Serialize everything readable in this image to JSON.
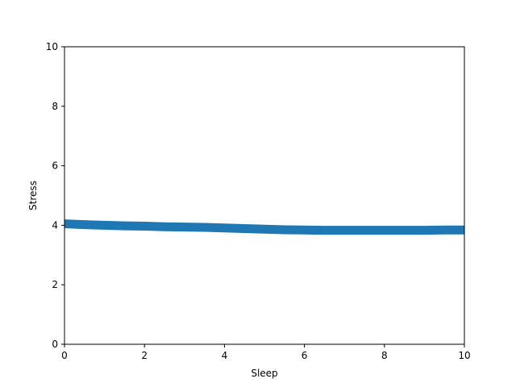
{
  "chart_data": {
    "type": "line",
    "title": "",
    "xlabel": "Sleep",
    "ylabel": "Stress",
    "xlim": [
      0,
      10
    ],
    "ylim": [
      0,
      10
    ],
    "xticks": [
      0,
      2,
      4,
      6,
      8,
      10
    ],
    "yticks": [
      0,
      2,
      4,
      6,
      8,
      10
    ],
    "grid": false,
    "series": [
      {
        "color": "#1f77b4",
        "x": [
          0,
          0.5,
          1,
          1.5,
          2,
          2.5,
          3,
          3.5,
          4,
          4.5,
          5,
          5.5,
          6,
          6.5,
          7,
          7.5,
          8,
          8.5,
          9,
          9.5,
          10
        ],
        "y": [
          4.05,
          4.02,
          4.0,
          3.98,
          3.97,
          3.95,
          3.94,
          3.93,
          3.91,
          3.89,
          3.87,
          3.85,
          3.84,
          3.83,
          3.83,
          3.83,
          3.83,
          3.83,
          3.83,
          3.84,
          3.84
        ]
      }
    ]
  }
}
